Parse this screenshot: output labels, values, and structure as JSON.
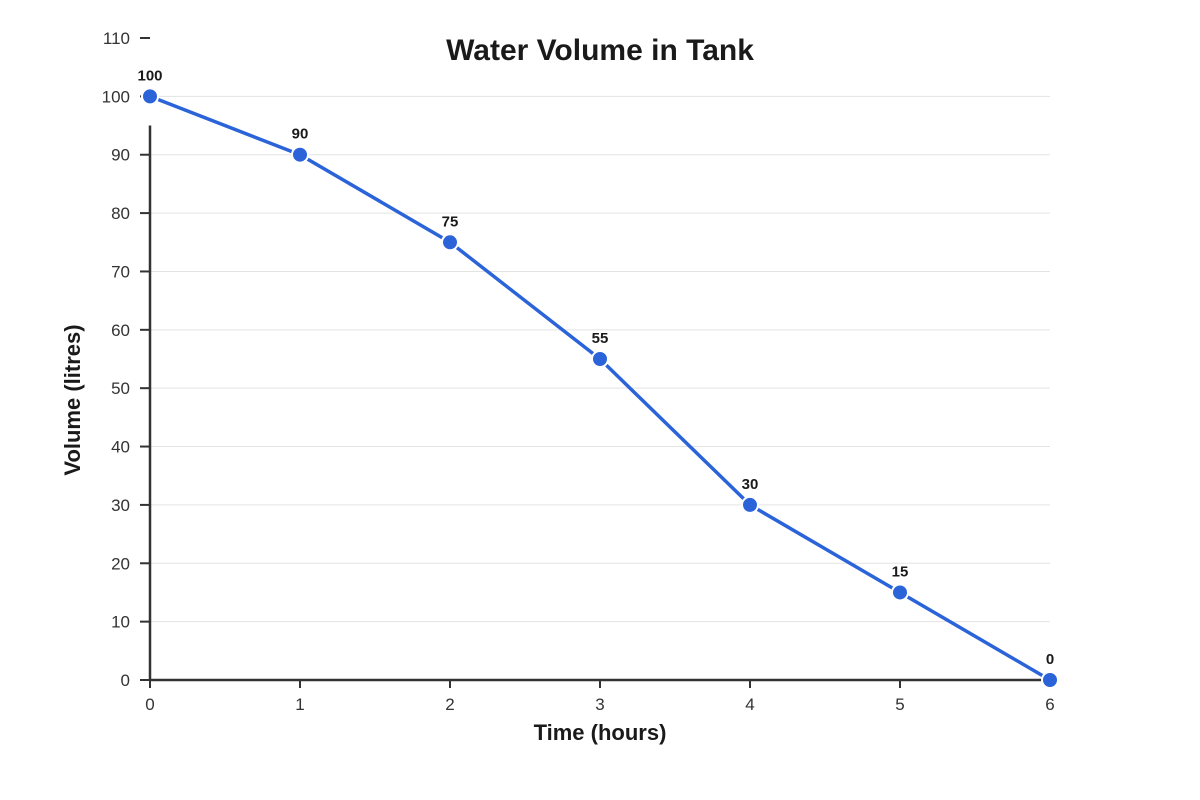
{
  "chart_data": {
    "type": "line",
    "title": "Water Volume in Tank",
    "xlabel": "Time (hours)",
    "ylabel": "Volume (litres)",
    "x": [
      0,
      1,
      2,
      3,
      4,
      5,
      6
    ],
    "series": [
      {
        "values": [
          100,
          90,
          75,
          55,
          30,
          15,
          0
        ],
        "color": "#2b63d9"
      }
    ],
    "xlim": [
      0,
      6
    ],
    "ylim": [
      0,
      110
    ],
    "xticks": [
      0,
      1,
      2,
      3,
      4,
      5,
      6
    ],
    "yticks": [
      0,
      10,
      20,
      30,
      40,
      50,
      60,
      70,
      80,
      90,
      100,
      110
    ],
    "grid": true,
    "data_labels": true
  }
}
